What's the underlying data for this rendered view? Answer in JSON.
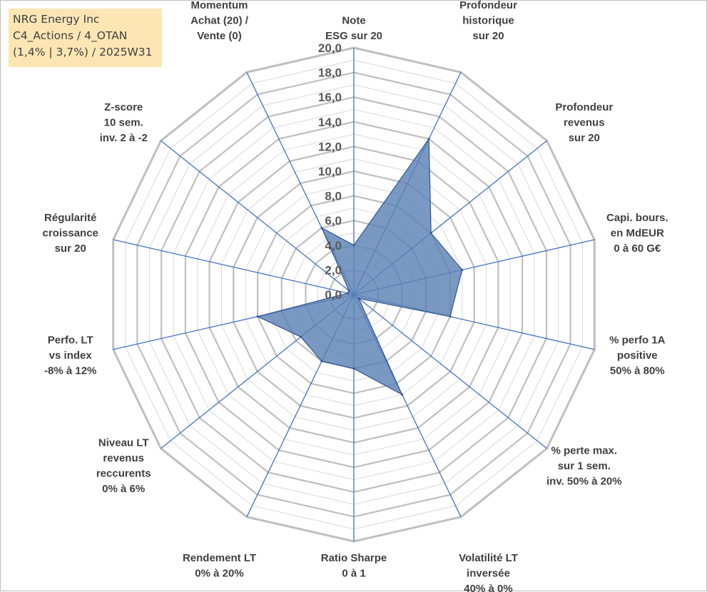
{
  "info": {
    "company": "NRG Energy Inc",
    "portfolio": "C4_Actions / 4_OTAN",
    "stats": "(1,4% | 3,7%) / 2025W31"
  },
  "chart_data": {
    "type": "radar",
    "title": "",
    "rmin": 0,
    "rmax": 20,
    "ticks": [
      "0,0",
      "2,0",
      "4,0",
      "6,0",
      "8,0",
      "10,0",
      "12,0",
      "14,0",
      "16,0",
      "18,0",
      "20,0"
    ],
    "grid": true,
    "legend": "none",
    "colors": {
      "fill": "#5b82b5",
      "fill_opacity": 0.82,
      "edge": "#2f5597",
      "spoke": "#4472c4",
      "ring": "#d9d9d9",
      "ring_major": "#bfbfbf"
    },
    "axes": [
      [
        "Note",
        "ESG sur 20"
      ],
      [
        "Profondeur",
        "historique",
        "sur 20"
      ],
      [
        "Profondeur",
        "revenus",
        "sur 20"
      ],
      [
        "Capi. bours.",
        "en MdEUR",
        "0 à 60 G€"
      ],
      [
        "% perfo 1A",
        "positive",
        "50% à 80%"
      ],
      [
        "% perte max.",
        "sur 1 sem.",
        "inv. 50% à 20%"
      ],
      [
        "Volatilité LT",
        "inversée",
        "40% à 0%"
      ],
      [
        "Ratio Sharpe",
        "0 à 1"
      ],
      [
        "Rendement LT",
        "0% à 20%"
      ],
      [
        "Niveau LT",
        "revenus",
        "reccurents",
        "0% à 6%"
      ],
      [
        "Perfo. LT",
        "vs index",
        "-8% à 12%"
      ],
      [
        "Régularité",
        "croissance",
        "sur 20"
      ],
      [
        "Z-score",
        "10 sem.",
        "inv. 2 à -2"
      ],
      [
        "Momentum",
        "Achat (20) /",
        "Vente (0)"
      ]
    ],
    "series": [
      {
        "values": [
          4.0,
          14.0,
          8.0,
          9.0,
          8.0,
          0.5,
          9.0,
          6.0,
          6.0,
          5.5,
          8.0,
          0.5,
          0.5,
          6.0
        ]
      }
    ]
  }
}
